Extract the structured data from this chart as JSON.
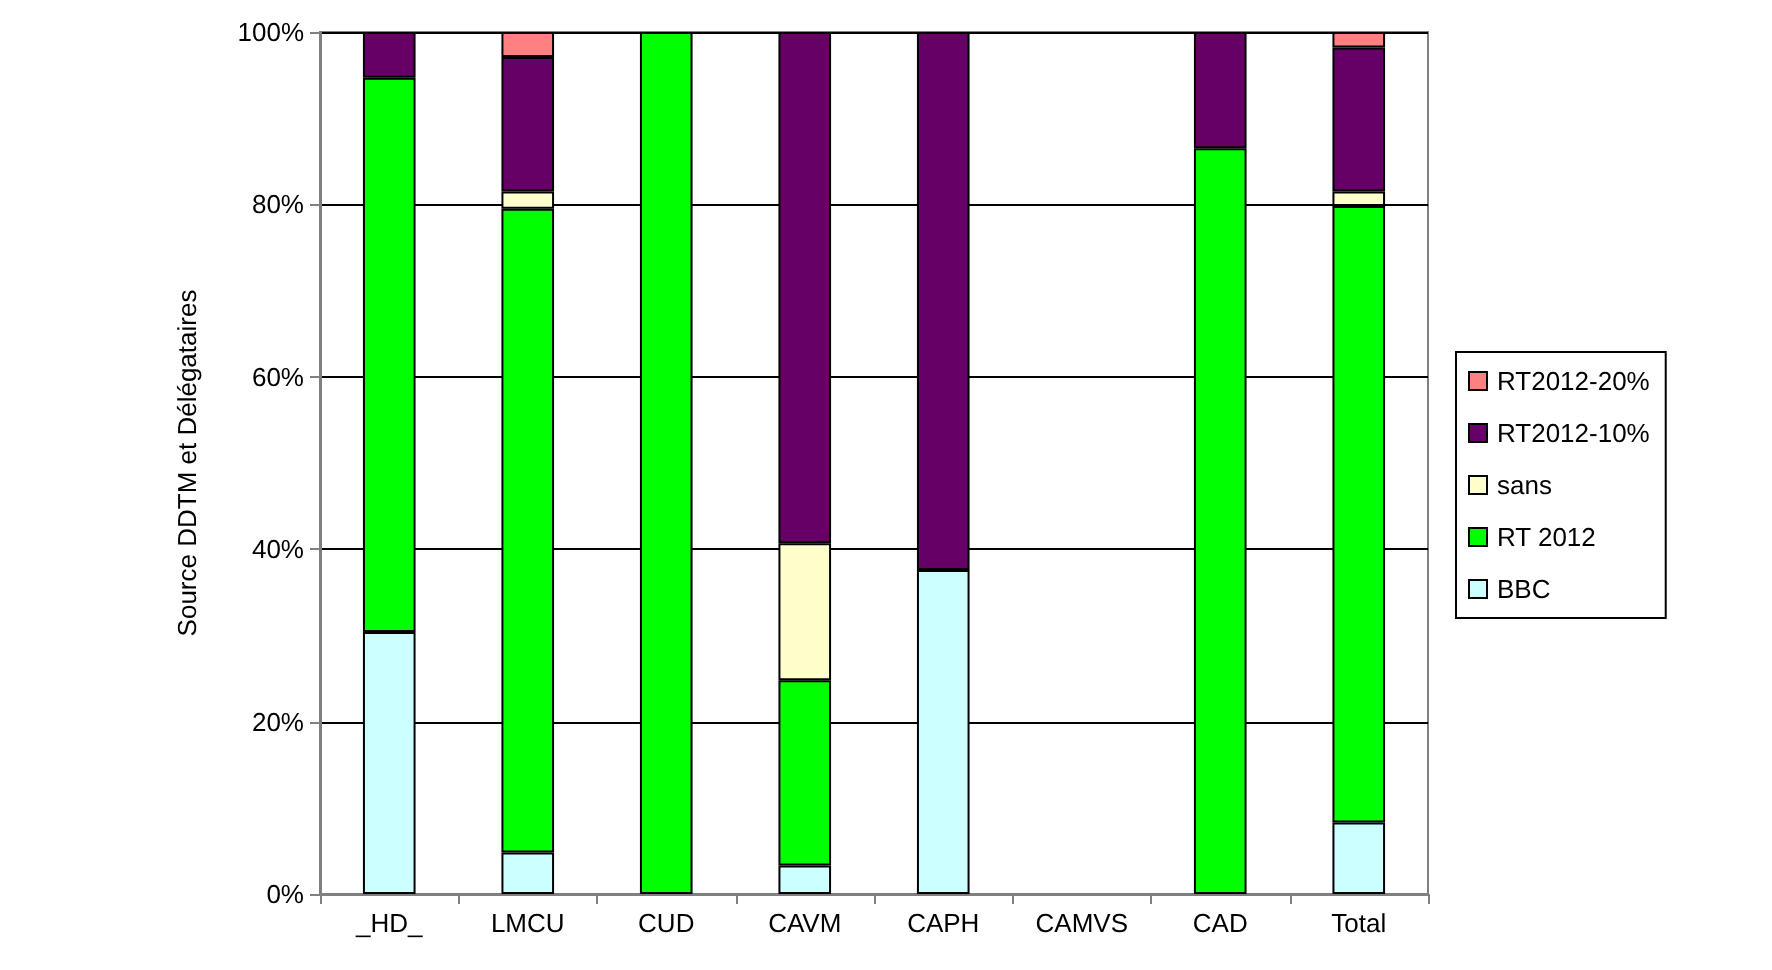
{
  "chart_data": {
    "type": "bar",
    "stacked": true,
    "ylabel": "Source DDTM et Délégataires",
    "categories": [
      "_HD_",
      "LMCU",
      "CUD",
      "CAVM",
      "CAPH",
      "CAMVS",
      "CAD",
      "Total"
    ],
    "series": [
      {
        "name": "BBC",
        "color": "#ccffff",
        "values": [
          30.4,
          4.8,
          null,
          3.3,
          37.6,
          null,
          null,
          8.3
        ]
      },
      {
        "name": "RT 2012",
        "color": "#00ff00",
        "values": [
          64.3,
          74.7,
          100,
          21.5,
          null,
          null,
          86.5,
          71.5
        ]
      },
      {
        "name": "sans",
        "color": "#ffffcc",
        "values": [
          null,
          2.0,
          null,
          15.9,
          null,
          null,
          null,
          1.7
        ]
      },
      {
        "name": "RT2012-10%",
        "color": "#660066",
        "values": [
          5.3,
          15.6,
          null,
          59.3,
          62.4,
          null,
          13.5,
          16.7
        ]
      },
      {
        "name": "RT2012-20%",
        "color": "#ff8080",
        "values": [
          null,
          2.9,
          null,
          null,
          null,
          null,
          null,
          1.8
        ]
      }
    ],
    "ylim": [
      0,
      100
    ],
    "yticks": [
      {
        "value": 0,
        "label": "0%"
      },
      {
        "value": 20,
        "label": "20%"
      },
      {
        "value": 40,
        "label": "40%"
      },
      {
        "value": 60,
        "label": "60%"
      },
      {
        "value": 80,
        "label": "80%"
      },
      {
        "value": 100,
        "label": "100%"
      }
    ],
    "grid": "y",
    "legend": "right"
  }
}
